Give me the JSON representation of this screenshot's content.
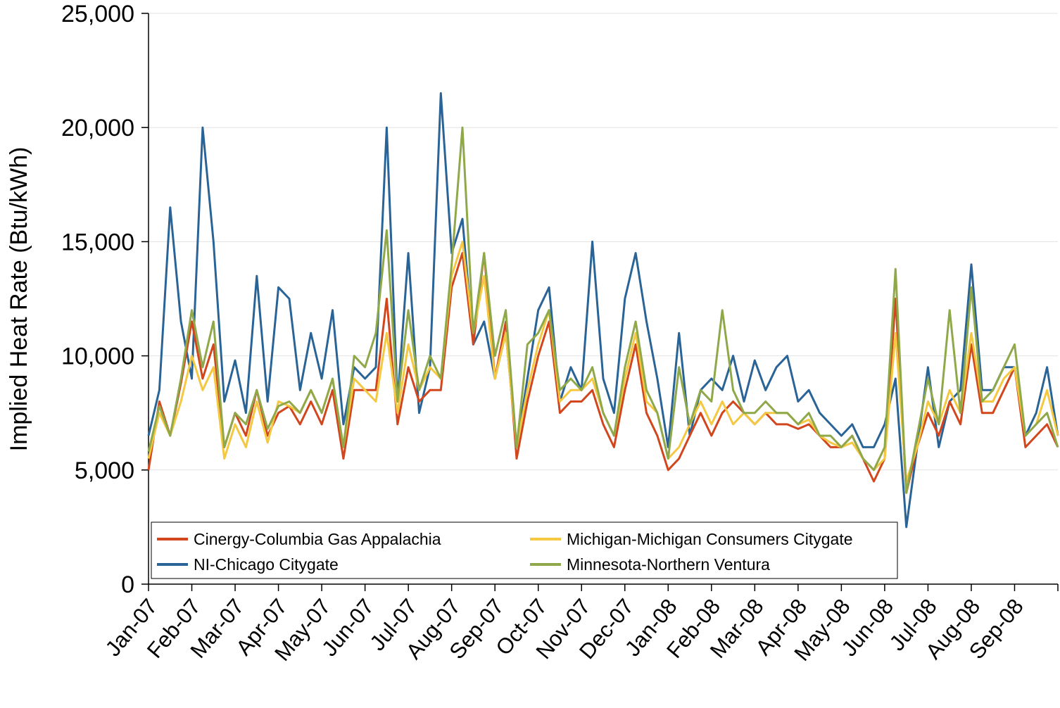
{
  "chart_data": {
    "type": "line",
    "y_label": "Implied Heat Rate (Btu/kWh)",
    "categories": [
      "Jan-07",
      null,
      null,
      null,
      "Feb-07",
      null,
      null,
      null,
      "Mar-07",
      null,
      null,
      null,
      "Apr-07",
      null,
      null,
      null,
      "May-07",
      null,
      null,
      null,
      "Jun-07",
      null,
      null,
      null,
      "Jul-07",
      null,
      null,
      null,
      "Aug-07",
      null,
      null,
      null,
      "Sep-07",
      null,
      null,
      null,
      "Oct-07",
      null,
      null,
      null,
      "Nov-07",
      null,
      null,
      null,
      "Dec-07",
      null,
      null,
      null,
      "Jan-08",
      null,
      null,
      null,
      "Feb-08",
      null,
      null,
      null,
      "Mar-08",
      null,
      null,
      null,
      "Apr-08",
      null,
      null,
      null,
      "May-08",
      null,
      null,
      null,
      "Jun-08",
      null,
      null,
      null,
      "Jul-08",
      null,
      null,
      null,
      "Aug-08",
      null,
      null,
      null,
      "Sep-08",
      null,
      null,
      null,
      null
    ],
    "series": [
      {
        "name": "Cinergy-Columbia Gas Appalachia",
        "color": "#d2461e",
        "values": [
          5000,
          8000,
          6500,
          8800,
          11500,
          9000,
          10500,
          6000,
          7500,
          6500,
          8500,
          6500,
          7500,
          7800,
          7000,
          8000,
          7000,
          8500,
          5500,
          8500,
          8500,
          8500,
          12500,
          7000,
          9500,
          8000,
          8500,
          8500,
          13000,
          14500,
          10500,
          14500,
          9000,
          11500,
          5500,
          8000,
          10000,
          11500,
          7500,
          8000,
          8000,
          8500,
          7000,
          6000,
          8500,
          10500,
          7500,
          6500,
          5000,
          5500,
          6500,
          7500,
          6500,
          7500,
          8000,
          7500,
          7000,
          7500,
          7000,
          7000,
          6800,
          7000,
          6500,
          6000,
          6000,
          6500,
          5500,
          4500,
          5500,
          12500,
          4000,
          6000,
          7500,
          6500,
          8000,
          7000,
          10500,
          7500,
          7500,
          8500,
          9500,
          6000,
          6500,
          7000,
          6000
        ]
      },
      {
        "name": "Michigan-Michigan Consumers Citygate",
        "color": "#f5c842",
        "values": [
          5500,
          7500,
          6500,
          8000,
          10000,
          8500,
          9500,
          5500,
          7000,
          6000,
          8000,
          6200,
          8000,
          7800,
          7500,
          8500,
          7500,
          9000,
          6000,
          9000,
          8500,
          8000,
          11000,
          7500,
          10500,
          8500,
          9500,
          9000,
          13500,
          15000,
          11000,
          13500,
          9000,
          11000,
          6000,
          8500,
          10500,
          12000,
          8000,
          8500,
          8500,
          9000,
          7500,
          6500,
          9000,
          11000,
          8000,
          7500,
          5500,
          6000,
          7000,
          8000,
          7000,
          8000,
          7000,
          7500,
          7000,
          7500,
          7500,
          7500,
          7000,
          7200,
          6500,
          6200,
          6000,
          6200,
          5500,
          5000,
          5500,
          11000,
          4500,
          6000,
          8000,
          7000,
          8500,
          7500,
          11000,
          8000,
          8000,
          9000,
          9500,
          6500,
          7000,
          8500,
          6500
        ]
      },
      {
        "name": "NI-Chicago Citygate",
        "color": "#2a6496",
        "values": [
          6500,
          8500,
          16500,
          11500,
          9000,
          20000,
          15000,
          8000,
          9800,
          7500,
          13500,
          8000,
          13000,
          12500,
          8500,
          11000,
          9000,
          12000,
          7000,
          9500,
          9000,
          9500,
          20000,
          8000,
          14500,
          7500,
          9500,
          21500,
          14500,
          16000,
          10500,
          11500,
          9000,
          11000,
          6000,
          9000,
          12000,
          13000,
          8000,
          9500,
          8500,
          15000,
          9000,
          7500,
          12500,
          14500,
          11500,
          9000,
          6000,
          11000,
          6500,
          8500,
          9000,
          8500,
          10000,
          8000,
          9800,
          8500,
          9500,
          10000,
          8000,
          8500,
          7500,
          7000,
          6500,
          7000,
          6000,
          6000,
          7000,
          9000,
          2500,
          6000,
          9500,
          6000,
          8000,
          8500,
          14000,
          8500,
          8500,
          9500,
          9500,
          6500,
          7500,
          9500,
          6500
        ]
      },
      {
        "name": "Minnesota-Northern Ventura",
        "color": "#8fa84a",
        "values": [
          5800,
          7800,
          6500,
          9000,
          12000,
          9500,
          11500,
          6000,
          7500,
          7000,
          8500,
          6800,
          7800,
          8000,
          7500,
          8500,
          7500,
          9000,
          6000,
          10000,
          9500,
          11000,
          15500,
          8000,
          12000,
          8500,
          10000,
          9000,
          14000,
          20000,
          11000,
          14500,
          10000,
          12000,
          6000,
          10500,
          11000,
          12000,
          8500,
          9000,
          8500,
          9500,
          7500,
          6500,
          9500,
          11500,
          8500,
          7500,
          5500,
          9500,
          7000,
          8500,
          8000,
          12000,
          8500,
          7500,
          7500,
          8000,
          7500,
          7500,
          7000,
          7500,
          6500,
          6500,
          6000,
          6500,
          5500,
          5000,
          6000,
          13800,
          4000,
          6500,
          9000,
          7000,
          12000,
          7500,
          13000,
          8000,
          8500,
          9500,
          10500,
          6500,
          7000,
          7500,
          6000
        ]
      }
    ],
    "ylim": [
      0,
      25000
    ],
    "yticks": [
      0,
      {
        "value": 5000,
        "label": "5,000"
      },
      {
        "value": 10000,
        "label": "10,000"
      },
      {
        "value": 15000,
        "label": "15,000"
      },
      {
        "value": 20000,
        "label": "20,000"
      },
      {
        "value": 25000,
        "label": "25,000"
      }
    ],
    "grid": true,
    "legend": "lower left"
  }
}
